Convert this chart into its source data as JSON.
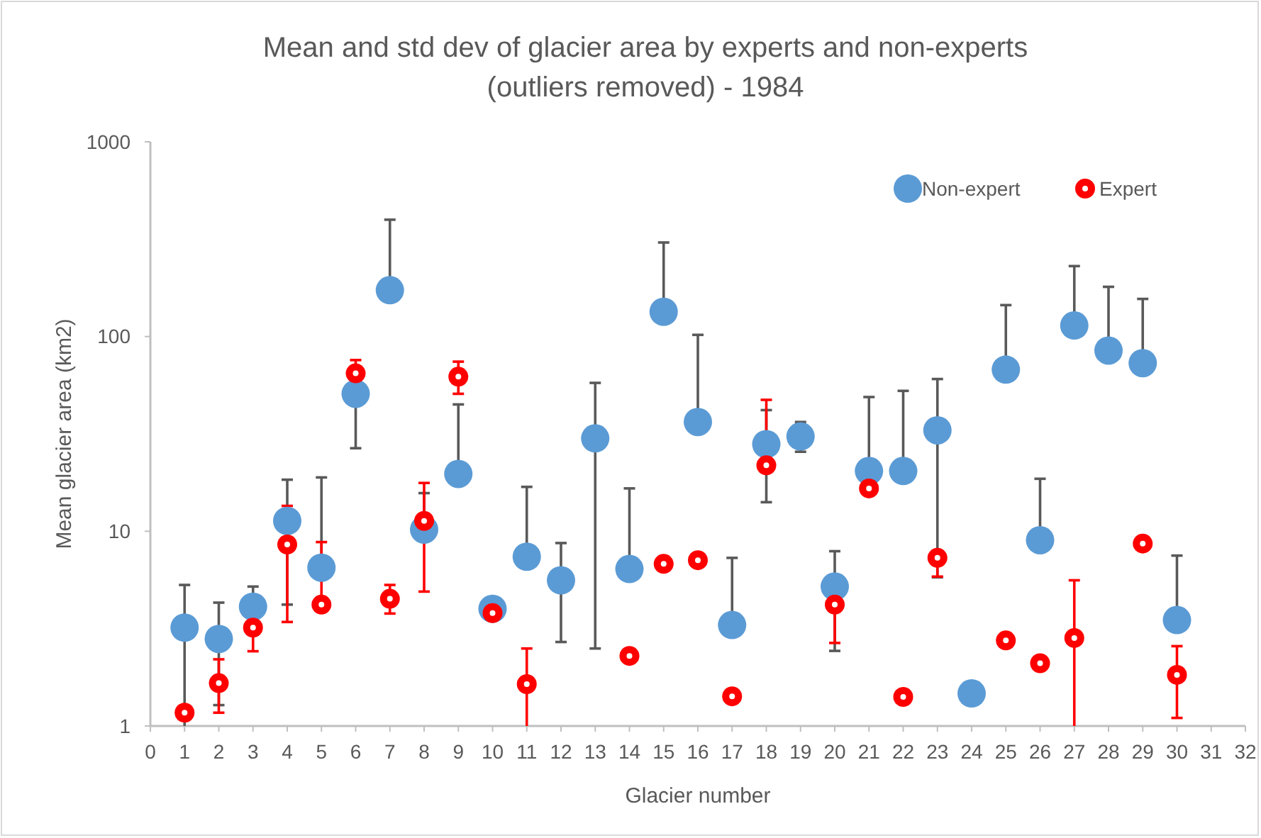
{
  "chart_data": {
    "type": "scatter",
    "title": "Mean and std dev of glacier area by experts and non-experts (outliers removed) - 1984",
    "xlabel": "Glacier number",
    "ylabel": "Mean glacier area (km2)",
    "x": [
      1,
      2,
      3,
      4,
      5,
      6,
      7,
      8,
      9,
      10,
      11,
      12,
      13,
      14,
      15,
      16,
      17,
      18,
      19,
      20,
      21,
      22,
      23,
      24,
      25,
      26,
      27,
      28,
      29,
      30
    ],
    "series": [
      {
        "name": "Non-expert",
        "color": "#5b9bd5",
        "values": [
          3.2,
          2.8,
          4.1,
          11.3,
          6.5,
          50.8,
          173,
          10.2,
          19.7,
          4.0,
          7.4,
          5.6,
          30,
          6.4,
          134,
          36.4,
          3.3,
          28,
          30.7,
          5.2,
          20.4,
          20.4,
          33,
          1.47,
          67.6,
          9.0,
          114,
          84.7,
          73,
          3.5
        ],
        "errors": [
          [
            1,
            5.3
          ],
          [
            1.28,
            4.3
          ],
          [
            4.1,
            5.2
          ],
          [
            4.2,
            18.4
          ],
          [
            6.5,
            18.9
          ],
          [
            26.7,
            50.8
          ],
          [
            173,
            398
          ],
          [
            10.2,
            15.7
          ],
          [
            19.7,
            44.8
          ],
          null,
          [
            7.4,
            16.9
          ],
          [
            2.7,
            8.7
          ],
          [
            2.5,
            57.8
          ],
          [
            6.4,
            16.6
          ],
          [
            134,
            304
          ],
          [
            36.4,
            102
          ],
          [
            3.3,
            7.3
          ],
          [
            14.1,
            41.9
          ],
          [
            25.6,
            36.4
          ],
          [
            2.43,
            7.9
          ],
          [
            20.4,
            48.9
          ],
          [
            20.4,
            52.6
          ],
          [
            5.8,
            60.5
          ],
          null,
          [
            67.6,
            145
          ],
          [
            9.0,
            18.6
          ],
          [
            114,
            230
          ],
          [
            84.7,
            180
          ],
          [
            73,
            156
          ],
          [
            3.5,
            7.5
          ]
        ]
      },
      {
        "name": "Expert",
        "color": "#ff0000",
        "values": [
          1.17,
          1.66,
          3.2,
          8.55,
          4.2,
          64.7,
          4.5,
          11.3,
          62.2,
          3.8,
          1.64,
          null,
          null,
          2.29,
          6.8,
          7.1,
          1.42,
          21.8,
          null,
          4.2,
          16.6,
          1.41,
          7.3,
          null,
          2.75,
          2.1,
          2.83,
          null,
          8.65,
          1.83
        ],
        "errors": [
          null,
          [
            1.17,
            2.2
          ],
          [
            2.42,
            3.2
          ],
          [
            3.42,
            13.5
          ],
          [
            4.2,
            8.8
          ],
          [
            64.7,
            75.7
          ],
          [
            3.78,
            5.3
          ],
          [
            4.9,
            17.7
          ],
          [
            50.8,
            74.3
          ],
          null,
          [
            1,
            2.5
          ],
          null,
          null,
          null,
          null,
          null,
          null,
          [
            21.8,
            47.3
          ],
          null,
          [
            2.67,
            4.2
          ],
          null,
          null,
          [
            5.85,
            7.3
          ],
          null,
          null,
          null,
          [
            1,
            5.6
          ],
          null,
          null,
          [
            1.1,
            2.57
          ]
        ]
      }
    ],
    "xlim": [
      0,
      32
    ],
    "xticks": [
      0,
      1,
      2,
      3,
      4,
      5,
      6,
      7,
      8,
      9,
      10,
      11,
      12,
      13,
      14,
      15,
      16,
      17,
      18,
      19,
      20,
      21,
      22,
      23,
      24,
      25,
      26,
      27,
      28,
      29,
      30,
      31,
      32
    ],
    "ylim": [
      1,
      1000
    ],
    "yticks": [
      1,
      10,
      100,
      1000
    ],
    "log": "y",
    "grid": false,
    "legend": "top right",
    "marker": "circle"
  }
}
